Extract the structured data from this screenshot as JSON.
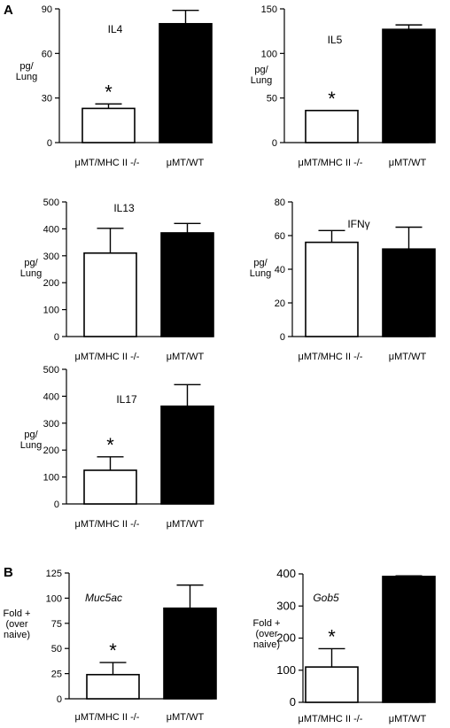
{
  "panels": {
    "A": "A",
    "B": "B"
  },
  "chart_data": [
    {
      "type": "bar",
      "panel": "A",
      "title": "IL4",
      "title_italic": false,
      "ylabel": [
        "pg/",
        "Lung"
      ],
      "categories": [
        "μMT/MHC II -/-",
        "μMT/WT"
      ],
      "values": [
        23,
        80
      ],
      "errors": [
        3,
        9
      ],
      "fills": [
        "#ffffff",
        "#000000"
      ],
      "ylim": [
        0,
        90
      ],
      "yticks": [
        0,
        30,
        60,
        90
      ],
      "significant": [
        true,
        false
      ]
    },
    {
      "type": "bar",
      "panel": "A",
      "title": "IL5",
      "title_italic": false,
      "ylabel": [
        "pg/",
        "Lung"
      ],
      "categories": [
        "μMT/MHC II -/-",
        "μMT/WT"
      ],
      "values": [
        36,
        127
      ],
      "errors": [
        0,
        5
      ],
      "fills": [
        "#ffffff",
        "#000000"
      ],
      "ylim": [
        0,
        150
      ],
      "yticks": [
        0,
        50,
        100,
        150
      ],
      "significant": [
        true,
        false
      ]
    },
    {
      "type": "bar",
      "panel": "A",
      "title": "IL13",
      "title_italic": false,
      "ylabel": [
        "pg/",
        "Lung"
      ],
      "categories": [
        "μMT/MHC II -/-",
        "μMT/WT"
      ],
      "values": [
        310,
        385
      ],
      "errors": [
        92,
        35
      ],
      "fills": [
        "#ffffff",
        "#000000"
      ],
      "ylim": [
        0,
        500
      ],
      "yticks": [
        0,
        100,
        200,
        300,
        400,
        500
      ],
      "significant": [
        false,
        false
      ]
    },
    {
      "type": "bar",
      "panel": "A",
      "title": "IFNγ",
      "title_italic": false,
      "ylabel": [
        "pg/",
        "Lung"
      ],
      "categories": [
        "μMT/MHC II -/-",
        "μMT/WT"
      ],
      "values": [
        56,
        52
      ],
      "errors": [
        7,
        13
      ],
      "fills": [
        "#ffffff",
        "#000000"
      ],
      "ylim": [
        0,
        80
      ],
      "yticks": [
        0,
        20,
        40,
        60,
        80
      ],
      "significant": [
        false,
        false
      ]
    },
    {
      "type": "bar",
      "panel": "A",
      "title": "IL17",
      "title_italic": false,
      "ylabel": [
        "pg/",
        "Lung"
      ],
      "categories": [
        "μMT/MHC II -/-",
        "μMT/WT"
      ],
      "values": [
        125,
        363
      ],
      "errors": [
        50,
        80
      ],
      "fills": [
        "#ffffff",
        "#000000"
      ],
      "ylim": [
        0,
        500
      ],
      "yticks": [
        0,
        100,
        200,
        300,
        400,
        500
      ],
      "significant": [
        true,
        false
      ]
    },
    {
      "type": "bar",
      "panel": "B",
      "title": "Muc5ac",
      "title_italic": true,
      "ylabel": [
        "Fold +",
        "(over",
        "naive)"
      ],
      "categories": [
        "μMT/MHC II -/-",
        "μMT/WT"
      ],
      "values": [
        24,
        90
      ],
      "errors": [
        12,
        23
      ],
      "fills": [
        "#ffffff",
        "#000000"
      ],
      "ylim": [
        0,
        125
      ],
      "yticks": [
        0,
        25,
        50,
        75,
        100,
        125
      ],
      "significant": [
        true,
        false
      ]
    },
    {
      "type": "bar",
      "panel": "B",
      "title": "Gob5",
      "title_italic": true,
      "ylabel": [
        "Fold +",
        "(over",
        "naive)"
      ],
      "categories": [
        "μMT/MHC II -/-",
        "μMT/WT"
      ],
      "values": [
        110,
        392
      ],
      "errors": [
        57,
        2
      ],
      "fills": [
        "#ffffff",
        "#000000"
      ],
      "ylim": [
        0,
        400
      ],
      "yticks": [
        0,
        100,
        200,
        300,
        400
      ],
      "significant": [
        true,
        false
      ]
    }
  ]
}
